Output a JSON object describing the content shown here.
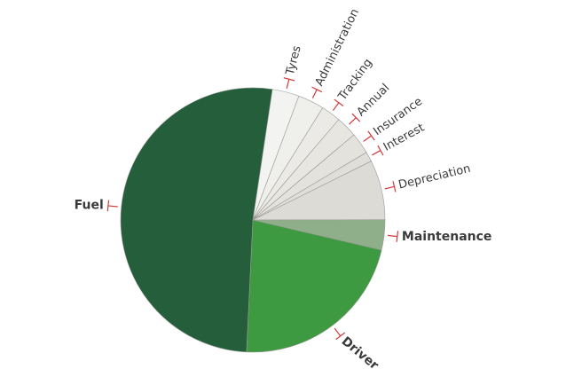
{
  "chart_data": {
    "type": "pie",
    "categories": [
      "Tyres",
      "Administration",
      "Tracking",
      "Annual",
      "Insurance",
      "Interest",
      "Depreciation",
      "Maintenance",
      "Driver",
      "Fuel"
    ],
    "values": [
      3.3,
      3.2,
      2.4,
      2.6,
      2.6,
      1.2,
      7.3,
      3.7,
      22.1,
      51.6
    ],
    "colors": [
      "#f3f3f1",
      "#efefec",
      "#ebeae6",
      "#e7e6e1",
      "#e3e2dd",
      "#dfded9",
      "#dddbd5",
      "#8fae8a",
      "#3d9a41",
      "#245e3b"
    ],
    "emphasis": [
      false,
      false,
      false,
      false,
      false,
      false,
      false,
      true,
      true,
      true
    ]
  }
}
